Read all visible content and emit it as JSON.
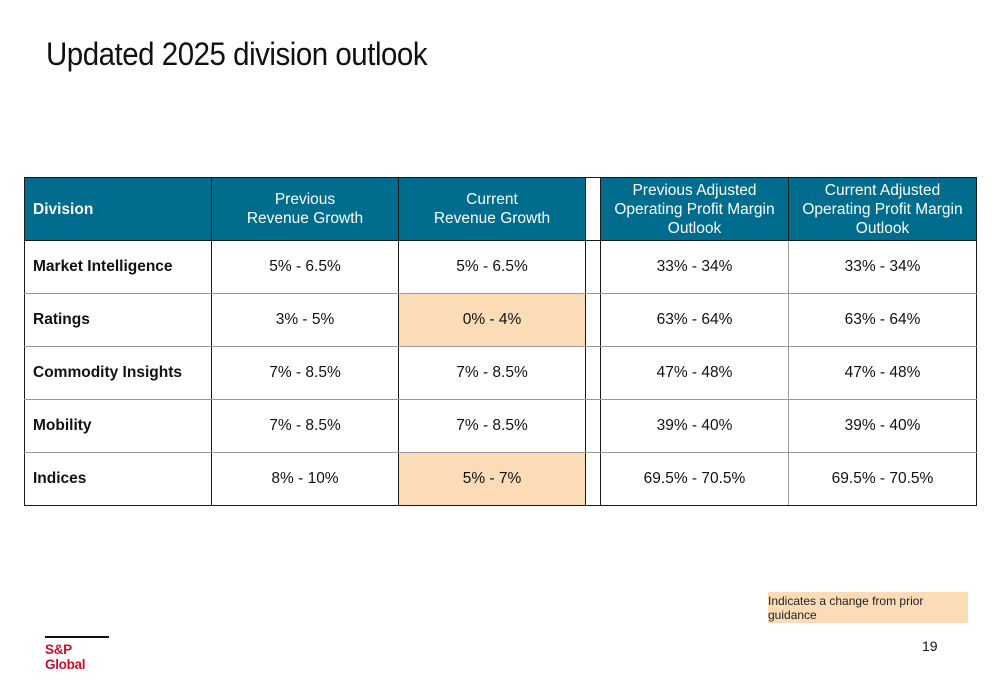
{
  "title": "Updated 2025 division outlook",
  "table": {
    "headers": [
      [
        "Division"
      ],
      [
        "Previous",
        "Revenue Growth"
      ],
      [
        "Current",
        "Revenue Growth"
      ],
      [
        "Previous Adjusted",
        "Operating Profit Margin",
        "Outlook"
      ],
      [
        "Current Adjusted",
        "Operating Profit Margin",
        "Outlook"
      ]
    ],
    "rows": [
      {
        "division": "Market Intelligence",
        "prev_rev": "5% - 6.5%",
        "curr_rev": "5% - 6.5%",
        "prev_margin": "33% - 34%",
        "curr_margin": "33% - 34%",
        "curr_rev_changed": false
      },
      {
        "division": "Ratings",
        "prev_rev": "3% - 5%",
        "curr_rev": "0% - 4%",
        "prev_margin": "63% - 64%",
        "curr_margin": "63% - 64%",
        "curr_rev_changed": true
      },
      {
        "division": "Commodity Insights",
        "prev_rev": "7% - 8.5%",
        "curr_rev": "7% - 8.5%",
        "prev_margin": "47% - 48%",
        "curr_margin": "47% - 48%",
        "curr_rev_changed": false
      },
      {
        "division": "Mobility",
        "prev_rev": "7% - 8.5%",
        "curr_rev": "7% - 8.5%",
        "prev_margin": "39% - 40%",
        "curr_margin": "39% - 40%",
        "curr_rev_changed": false
      },
      {
        "division": "Indices",
        "prev_rev": "8% - 10%",
        "curr_rev": "5% - 7%",
        "prev_margin": "69.5% - 70.5%",
        "curr_margin": "69.5% - 70.5%",
        "curr_rev_changed": true
      }
    ]
  },
  "legend": "Indicates a change from prior guidance",
  "logo_text": "S&P Global",
  "page_number": "19",
  "colors": {
    "header_bg": "#006d8f",
    "changed_bg": "#fbdcb6",
    "brand_red": "#c8102e"
  }
}
